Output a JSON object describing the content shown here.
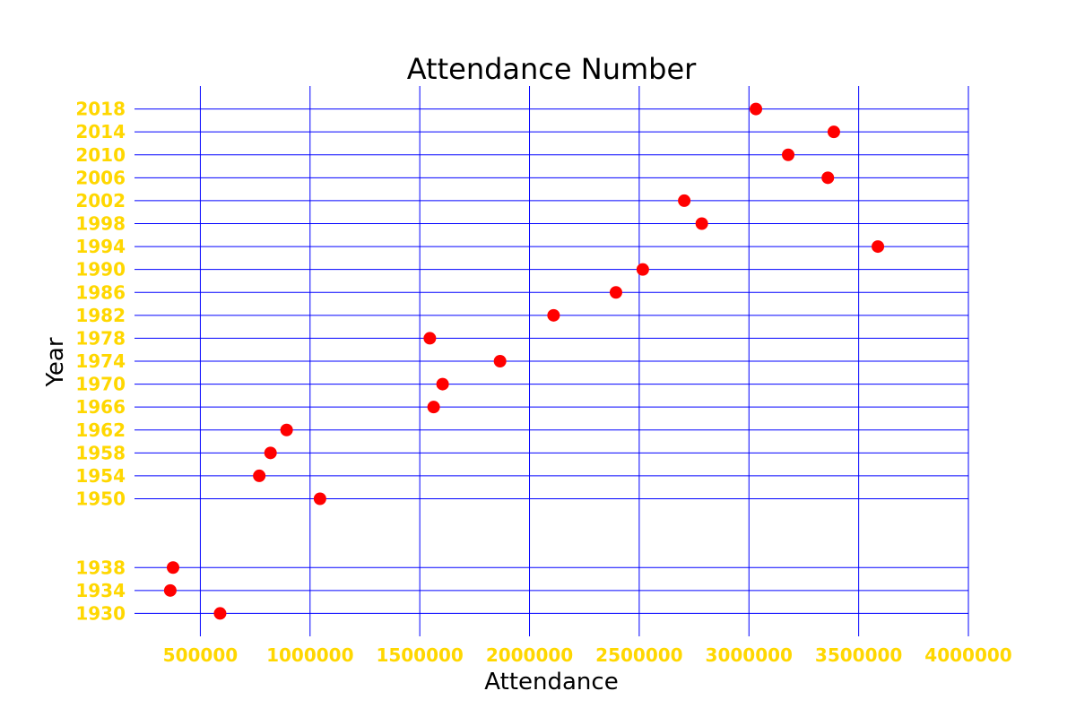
{
  "chart_data": {
    "type": "scatter",
    "title": "Attendance Number",
    "xlabel": "Attendance",
    "ylabel": "Year",
    "xlim": [
      200000,
      4000000
    ],
    "ylim": [
      1926,
      2022
    ],
    "xticks": [
      500000,
      1000000,
      1500000,
      2000000,
      2500000,
      3000000,
      3500000,
      4000000
    ],
    "yticks": [
      1930,
      1934,
      1938,
      1950,
      1954,
      1958,
      1962,
      1966,
      1970,
      1974,
      1978,
      1982,
      1986,
      1990,
      1994,
      1998,
      2002,
      2006,
      2010,
      2014,
      2018
    ],
    "grid": true,
    "legend": "none",
    "points": [
      {
        "x": 590000,
        "y": 1930
      },
      {
        "x": 363000,
        "y": 1934
      },
      {
        "x": 375700,
        "y": 1938
      },
      {
        "x": 1045246,
        "y": 1950
      },
      {
        "x": 768607,
        "y": 1954
      },
      {
        "x": 819810,
        "y": 1958
      },
      {
        "x": 893172,
        "y": 1962
      },
      {
        "x": 1563135,
        "y": 1966
      },
      {
        "x": 1603975,
        "y": 1970
      },
      {
        "x": 1865753,
        "y": 1974
      },
      {
        "x": 1545791,
        "y": 1978
      },
      {
        "x": 2109723,
        "y": 1982
      },
      {
        "x": 2394031,
        "y": 1986
      },
      {
        "x": 2516215,
        "y": 1990
      },
      {
        "x": 3587538,
        "y": 1994
      },
      {
        "x": 2785100,
        "y": 1998
      },
      {
        "x": 2705197,
        "y": 2002
      },
      {
        "x": 3359439,
        "y": 2006
      },
      {
        "x": 3178856,
        "y": 2010
      },
      {
        "x": 3386810,
        "y": 2014
      },
      {
        "x": 3031768,
        "y": 2018
      }
    ],
    "colors": {
      "point": "#ff0000",
      "grid": "#0000ff",
      "tick_label": "#ffd700",
      "text": "#000000"
    }
  }
}
